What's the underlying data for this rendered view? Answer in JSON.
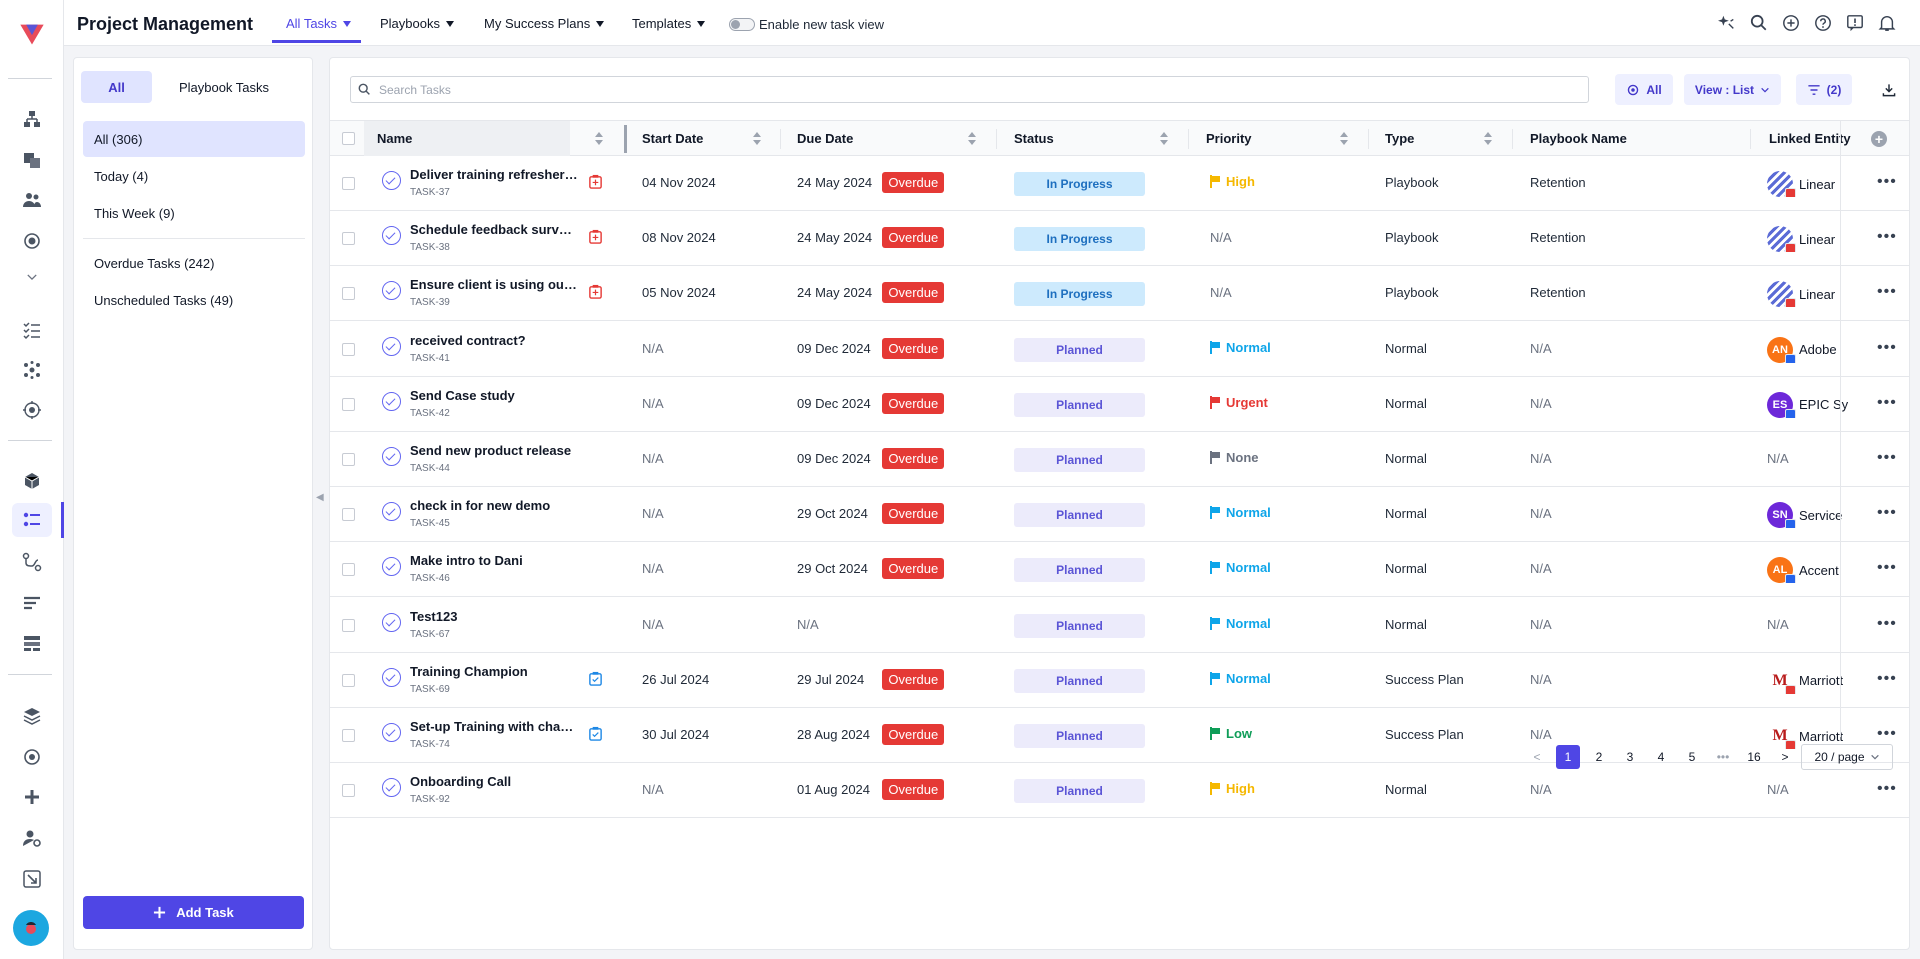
{
  "header": {
    "title": "Project Management",
    "nav": [
      {
        "label": "All Tasks",
        "active": true
      },
      {
        "label": "Playbooks"
      },
      {
        "label": "My Success Plans"
      },
      {
        "label": "Templates"
      }
    ],
    "toggle_label": "Enable new task view",
    "icons": [
      "sparkle-icon",
      "search-icon",
      "add-circle-icon",
      "help-icon",
      "feedback-icon",
      "bell-icon"
    ]
  },
  "rail": {
    "icons": [
      "logo",
      "hierarchy-icon",
      "pages-icon",
      "people-icon",
      "target-icon",
      "collapse-icon",
      "checklist-icon",
      "integrations-icon",
      "radar-icon",
      "cube-icon",
      "project-tasks-icon",
      "journey-icon",
      "timeline-icon",
      "layout-icon",
      "layers-icon",
      "settings-icon",
      "plus-icon",
      "user-gear-icon",
      "expand-icon",
      "avatar"
    ]
  },
  "filters": {
    "tabs": [
      "All",
      "Playbook Tasks"
    ],
    "items": [
      "All (306)",
      "Today (4)",
      "This Week (9)"
    ],
    "items2": [
      "Overdue Tasks (242)",
      "Unscheduled Tasks (49)"
    ],
    "add_task": "Add Task"
  },
  "toolbar": {
    "search_placeholder": "Search Tasks",
    "all_label": "All",
    "view_label": "View : List",
    "filter_label": "(2)"
  },
  "table": {
    "columns": [
      "Name",
      "Start Date",
      "Due Date",
      "Status",
      "Priority",
      "Type",
      "Playbook Name",
      "Linked Entity"
    ],
    "overdue_label": "Overdue",
    "rows": [
      {
        "name": "Deliver training refresher session",
        "id": "TASK-37",
        "start": "04 Nov 2024",
        "due": "24 May 2024",
        "overdue": true,
        "status": "In Progress",
        "priority": "High",
        "type": "Playbook",
        "playbook": "Retention",
        "entity": "Linear",
        "entity_avatar": "stripes"
      },
      {
        "name": "Schedule feedback survey session",
        "id": "TASK-38",
        "start": "08 Nov 2024",
        "due": "24 May 2024",
        "overdue": true,
        "status": "In Progress",
        "priority": "N/A",
        "type": "Playbook",
        "playbook": "Retention",
        "entity": "Linear",
        "entity_avatar": "stripes"
      },
      {
        "name": "Ensure client is using our product",
        "id": "TASK-39",
        "start": "05 Nov 2024",
        "due": "24 May 2024",
        "overdue": true,
        "status": "In Progress",
        "priority": "N/A",
        "type": "Playbook",
        "playbook": "Retention",
        "entity": "Linear",
        "entity_avatar": "stripes"
      },
      {
        "name": "received contract?",
        "id": "TASK-41",
        "start": "N/A",
        "due": "09 Dec 2024",
        "overdue": true,
        "status": "Planned",
        "priority": "Normal",
        "type": "Normal",
        "playbook": "N/A",
        "entity": "Adobe",
        "entity_avatar": "AN"
      },
      {
        "name": "Send Case study",
        "id": "TASK-42",
        "start": "N/A",
        "due": "09 Dec 2024",
        "overdue": true,
        "status": "Planned",
        "priority": "Urgent",
        "type": "Normal",
        "playbook": "N/A",
        "entity": "EPIC Sy",
        "entity_avatar": "ES"
      },
      {
        "name": "Send new product release",
        "id": "TASK-44",
        "start": "N/A",
        "due": "09 Dec 2024",
        "overdue": true,
        "status": "Planned",
        "priority": "None",
        "type": "Normal",
        "playbook": "N/A",
        "entity": "N/A",
        "entity_avatar": ""
      },
      {
        "name": "check in for new demo",
        "id": "TASK-45",
        "start": "N/A",
        "due": "29 Oct 2024",
        "overdue": true,
        "status": "Planned",
        "priority": "Normal",
        "type": "Normal",
        "playbook": "N/A",
        "entity": "Service",
        "entity_avatar": "SN"
      },
      {
        "name": "Make intro to Dani",
        "id": "TASK-46",
        "start": "N/A",
        "due": "29 Oct 2024",
        "overdue": true,
        "status": "Planned",
        "priority": "Normal",
        "type": "Normal",
        "playbook": "N/A",
        "entity": "Accent",
        "entity_avatar": "AL"
      },
      {
        "name": "Test123",
        "id": "TASK-67",
        "start": "N/A",
        "due": "N/A",
        "overdue": false,
        "status": "Planned",
        "priority": "Normal",
        "type": "Normal",
        "playbook": "N/A",
        "entity": "N/A",
        "entity_avatar": ""
      },
      {
        "name": "Training Champion",
        "id": "TASK-69",
        "start": "26 Jul 2024",
        "due": "29 Jul 2024",
        "overdue": true,
        "status": "Planned",
        "priority": "Normal",
        "type": "Success Plan",
        "playbook": "N/A",
        "entity": "Marriott",
        "entity_avatar": "marriott"
      },
      {
        "name": "Set-up Training with champion",
        "id": "TASK-74",
        "start": "30 Jul 2024",
        "due": "28 Aug 2024",
        "overdue": true,
        "status": "Planned",
        "priority": "Low",
        "type": "Success Plan",
        "playbook": "N/A",
        "entity": "Marriott",
        "entity_avatar": "marriott"
      },
      {
        "name": "Onboarding Call",
        "id": "TASK-92",
        "start": "N/A",
        "due": "01 Aug 2024",
        "overdue": true,
        "status": "Planned",
        "priority": "High",
        "type": "Normal",
        "playbook": "N/A",
        "entity": "N/A",
        "entity_avatar": ""
      }
    ]
  },
  "pagination": {
    "pages": [
      "1",
      "2",
      "3",
      "4",
      "5",
      "•••",
      "16"
    ],
    "current": "1",
    "per_page": "20 / page"
  },
  "colors": {
    "accent": "#4f46e5",
    "overdue": "#e53935",
    "high": "#f5b800",
    "normal": "#0ea5e9",
    "urgent": "#e53935",
    "low": "#0f9d58",
    "none": "#6b7280"
  }
}
